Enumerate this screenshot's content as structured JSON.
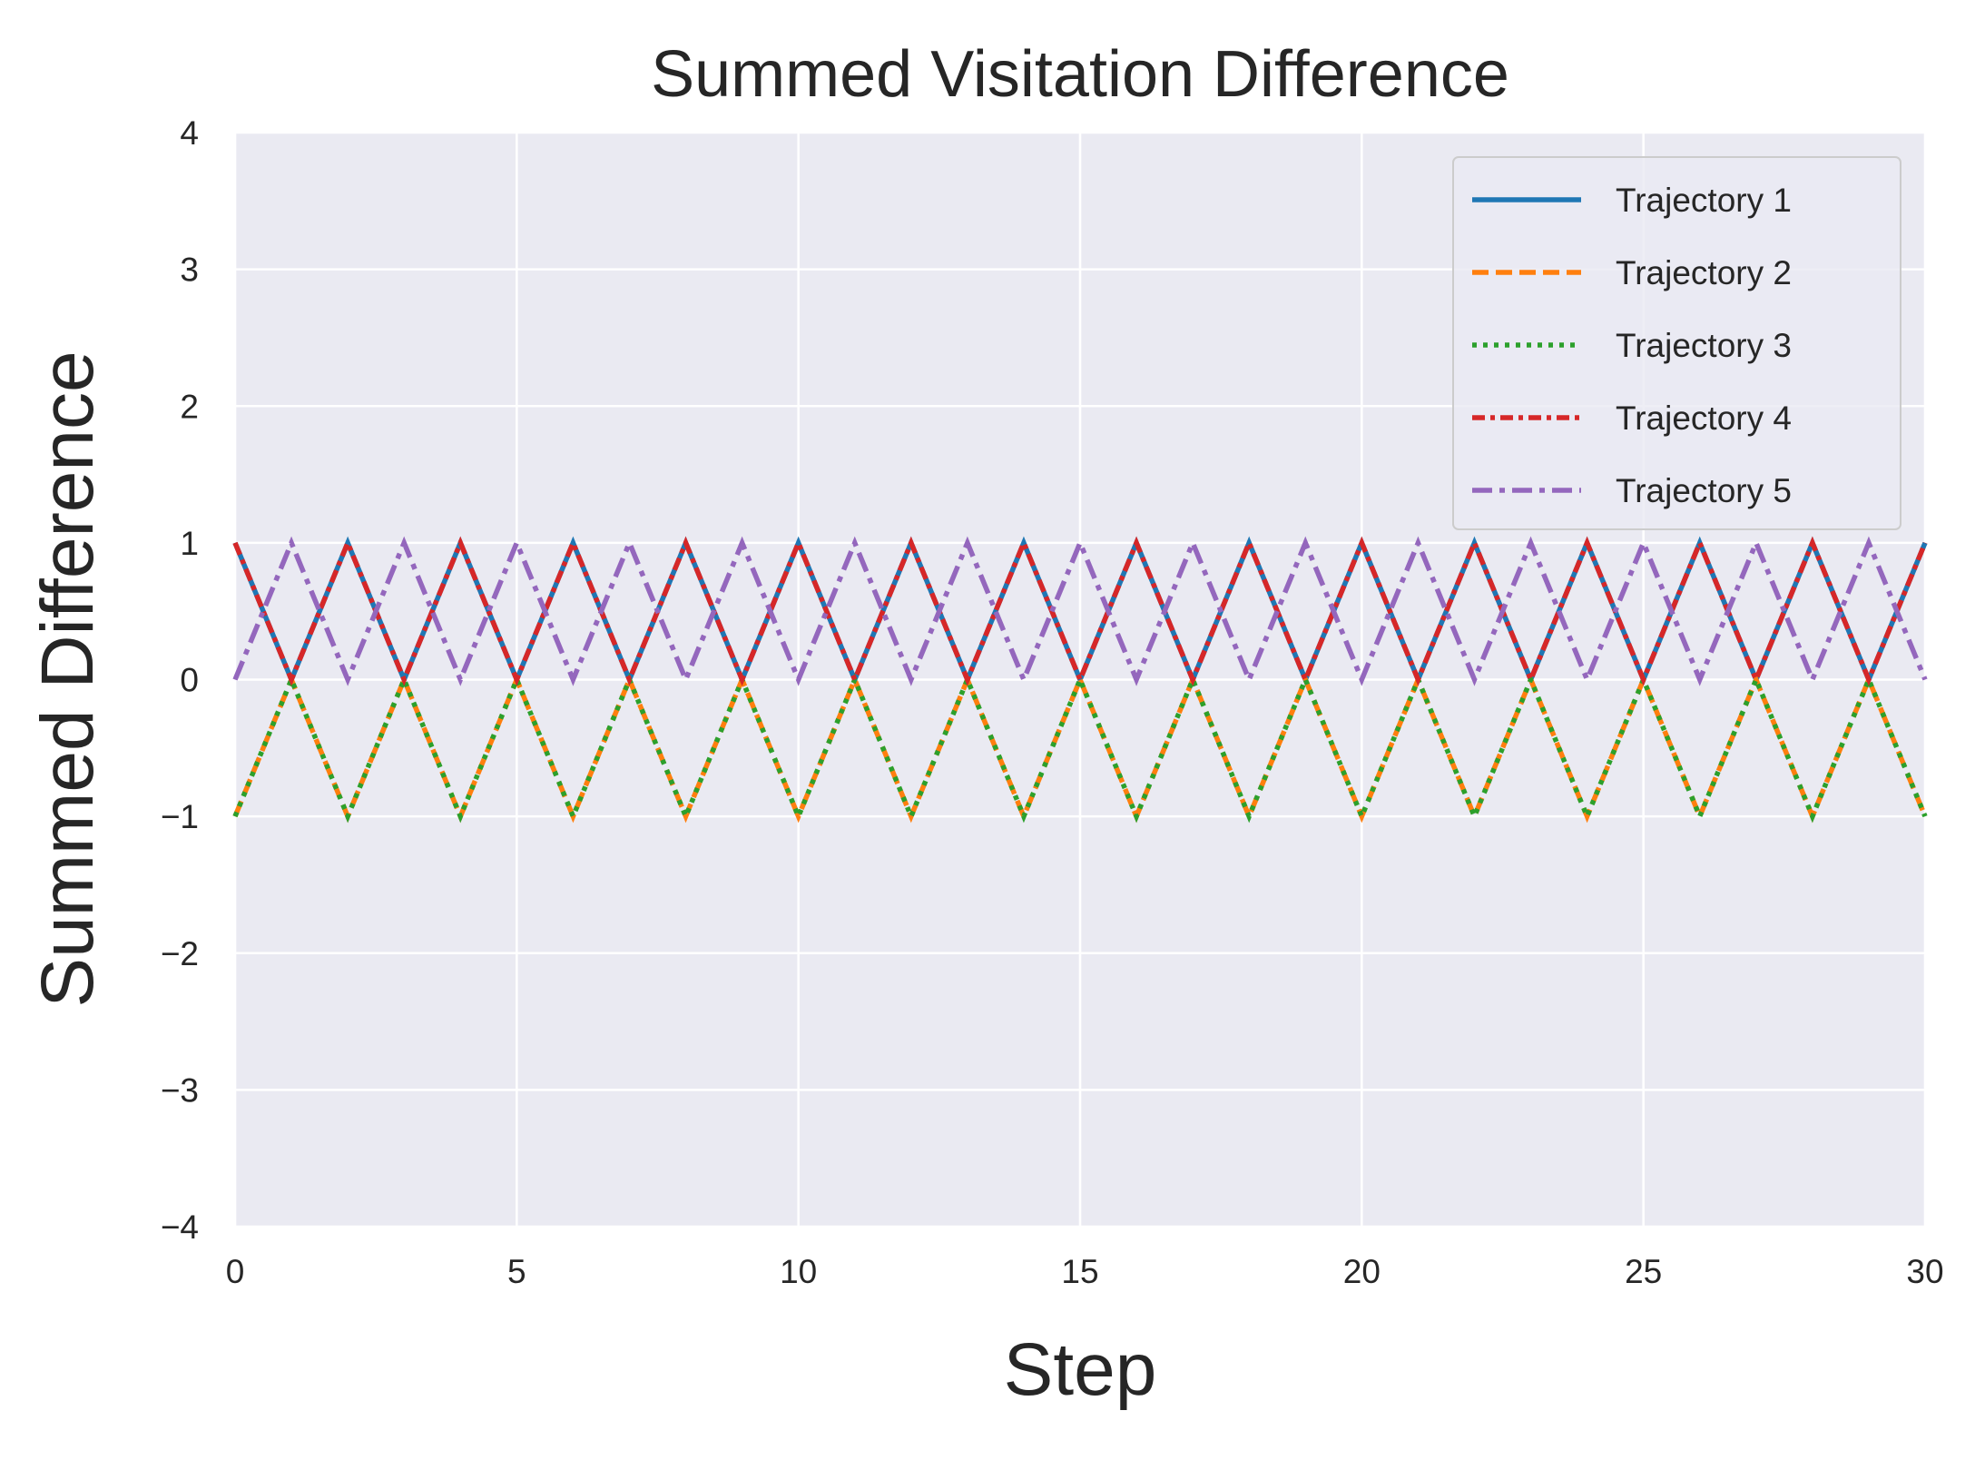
{
  "chart_data": {
    "type": "line",
    "title": "Summed Visitation Difference",
    "xlabel": "Step",
    "ylabel": "Summed Difference",
    "xlim": [
      0,
      30
    ],
    "ylim": [
      -4,
      4
    ],
    "xticks": [
      0,
      5,
      10,
      15,
      20,
      25,
      30
    ],
    "xtick_labels": [
      "0",
      "5",
      "10",
      "15",
      "20",
      "25",
      "30"
    ],
    "yticks": [
      4,
      3,
      2,
      1,
      0,
      -1,
      -2,
      -3,
      -4
    ],
    "ytick_labels": [
      "4",
      "3",
      "2",
      "1",
      "0",
      "−1",
      "−2",
      "−3",
      "−4"
    ],
    "grid": true,
    "legend_position": "top-right",
    "background": "#eaeaf2",
    "x": [
      0,
      1,
      2,
      3,
      4,
      5,
      6,
      7,
      8,
      9,
      10,
      11,
      12,
      13,
      14,
      15,
      16,
      17,
      18,
      19,
      20,
      21,
      22,
      23,
      24,
      25,
      26,
      27,
      28,
      29,
      30
    ],
    "series": [
      {
        "name": "Trajectory 1",
        "color": "#1f77b4",
        "style": "solid",
        "values": [
          1,
          0,
          1,
          0,
          1,
          0,
          1,
          0,
          1,
          0,
          1,
          0,
          1,
          0,
          1,
          0,
          1,
          0,
          1,
          0,
          1,
          0,
          1,
          0,
          1,
          0,
          1,
          0,
          1,
          0,
          1
        ]
      },
      {
        "name": "Trajectory 2",
        "color": "#ff7f0e",
        "style": "dashed",
        "values": [
          -1,
          0,
          -1,
          0,
          -1,
          0,
          -1,
          0,
          -1,
          0,
          -1,
          0,
          -1,
          0,
          -1,
          0,
          -1,
          0,
          -1,
          0,
          -1,
          0,
          -1,
          0,
          -1,
          0,
          -1,
          0,
          -1,
          0,
          -1
        ]
      },
      {
        "name": "Trajectory 3",
        "color": "#2ca02c",
        "style": "dotted",
        "values": [
          -1,
          0,
          -1,
          0,
          -1,
          0,
          -1,
          0,
          -1,
          0,
          -1,
          0,
          -1,
          0,
          -1,
          0,
          -1,
          0,
          -1,
          0,
          -1,
          0,
          -1,
          0,
          -1,
          0,
          -1,
          0,
          -1,
          0,
          -1
        ]
      },
      {
        "name": "Trajectory 4",
        "color": "#d62728",
        "style": "dashdot-short",
        "values": [
          1,
          0,
          1,
          0,
          1,
          0,
          1,
          0,
          1,
          0,
          1,
          0,
          1,
          0,
          1,
          0,
          1,
          0,
          1,
          0,
          1,
          0,
          1,
          0,
          1,
          0,
          1,
          0,
          1,
          0,
          1
        ]
      },
      {
        "name": "Trajectory 5",
        "color": "#9467bd",
        "style": "dashdot",
        "values": [
          0,
          1,
          0,
          1,
          0,
          1,
          0,
          1,
          0,
          1,
          0,
          1,
          0,
          1,
          0,
          1,
          0,
          1,
          0,
          1,
          0,
          1,
          0,
          1,
          0,
          1,
          0,
          1,
          0,
          1,
          0
        ]
      }
    ]
  }
}
